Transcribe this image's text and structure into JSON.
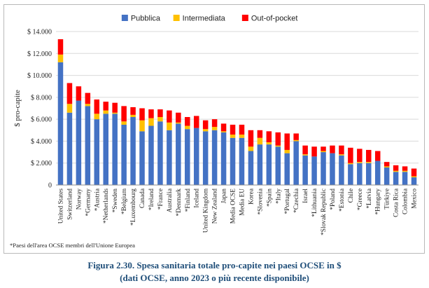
{
  "footnote": "*Paesi dell'area OCSE membri dell'Unione Europea",
  "caption": {
    "line1": "Figura 2.30. Spesa sanitaria totale pro-capite nei paesi OCSE in $",
    "line2": "(dati OCSE, anno 2023 o più recente disponibile)"
  },
  "chart_data": {
    "type": "bar",
    "stacked": true,
    "title": "",
    "ylabel": "$ pro-capite",
    "xlabel": "",
    "ylim": [
      0,
      14000
    ],
    "yticks": [
      0,
      2000,
      4000,
      6000,
      8000,
      10000,
      12000,
      14000
    ],
    "ytick_labels": [
      "0",
      "$ 2.000",
      "$ 4.000",
      "$ 6.000",
      "$ 8.000",
      "$ 10.000",
      "$ 12.000",
      "$ 14.000"
    ],
    "grid": true,
    "legend_position": "top",
    "categories": [
      "United States",
      "Switzerland",
      "Norway",
      "*Germany",
      "*Austria",
      "*Netherlands",
      "*Sweden",
      "*Belgium",
      "*Luxembourg",
      "Canada",
      "*Ireland",
      "*France",
      "Australia",
      "*Denmark",
      "*Finland",
      "Iceland",
      "United Kingdom",
      "New Zealand",
      "Japan",
      "Media OCSE",
      "Media EU",
      "Korea",
      "*Slovenia",
      "*Spain",
      "*Italy",
      "*Portugal",
      "*Czechia",
      "Israel",
      "*Lithuania",
      "*Slovak Republic",
      "*Poland",
      "*Estonia",
      "Chile",
      "*Greece",
      "*Latvia",
      "*Hungary",
      "Türkiye",
      "Costa Rica",
      "Colombia",
      "Mexico"
    ],
    "series": [
      {
        "name": "Pubblica",
        "color": "#4472c4",
        "values": [
          11200,
          6600,
          7700,
          7200,
          6000,
          6500,
          6500,
          5500,
          6200,
          4900,
          5400,
          5800,
          5000,
          5600,
          5100,
          5200,
          4900,
          5000,
          4800,
          4300,
          4300,
          3100,
          3700,
          3700,
          3500,
          2900,
          4000,
          2700,
          2600,
          3000,
          2900,
          2700,
          1900,
          2000,
          2000,
          2200,
          1600,
          1200,
          1200,
          700
        ]
      },
      {
        "name": "Intermediata",
        "color": "#ffc000",
        "values": [
          700,
          800,
          0,
          200,
          500,
          300,
          100,
          300,
          200,
          1000,
          700,
          400,
          700,
          100,
          300,
          0,
          200,
          300,
          100,
          300,
          300,
          400,
          600,
          200,
          100,
          300,
          100,
          100,
          0,
          100,
          0,
          100,
          100,
          100,
          100,
          0,
          100,
          100,
          100,
          100
        ]
      },
      {
        "name": "Out-of-pocket",
        "color": "#ff0000",
        "values": [
          1400,
          1900,
          1300,
          1000,
          1300,
          800,
          900,
          1400,
          700,
          1100,
          800,
          700,
          1100,
          900,
          800,
          1100,
          800,
          700,
          700,
          900,
          900,
          1500,
          700,
          1000,
          1200,
          1500,
          600,
          800,
          900,
          400,
          700,
          800,
          1400,
          1200,
          1100,
          900,
          400,
          500,
          400,
          700
        ]
      }
    ]
  }
}
